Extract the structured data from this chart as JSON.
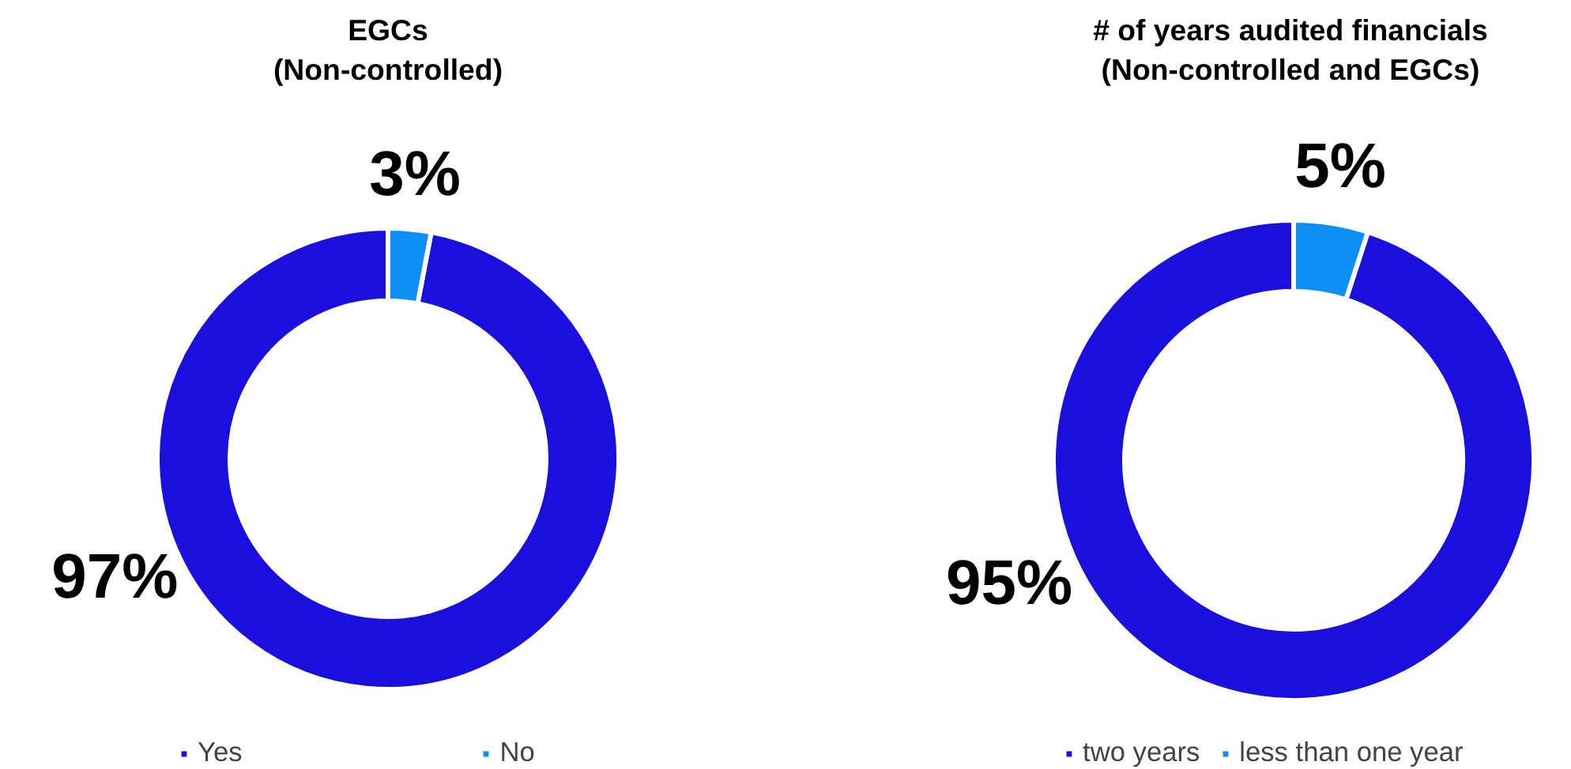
{
  "chart_data": [
    {
      "type": "donut",
      "title": "EGCs\n(Non-controlled)",
      "categories": [
        "Yes",
        "No"
      ],
      "values": [
        97,
        3
      ],
      "colors": [
        "#1a0fdc",
        "#0d8ff5"
      ],
      "value_labels": [
        "97%",
        "3%"
      ],
      "legend": "bottom"
    },
    {
      "type": "donut",
      "title": "# of years audited financials\n(Non-controlled and EGCs)",
      "categories": [
        "two years",
        "less than one year"
      ],
      "values": [
        95,
        5
      ],
      "colors": [
        "#1a0fdc",
        "#0d8ff5"
      ],
      "value_labels": [
        "95%",
        "5%"
      ],
      "legend": "bottom"
    }
  ]
}
